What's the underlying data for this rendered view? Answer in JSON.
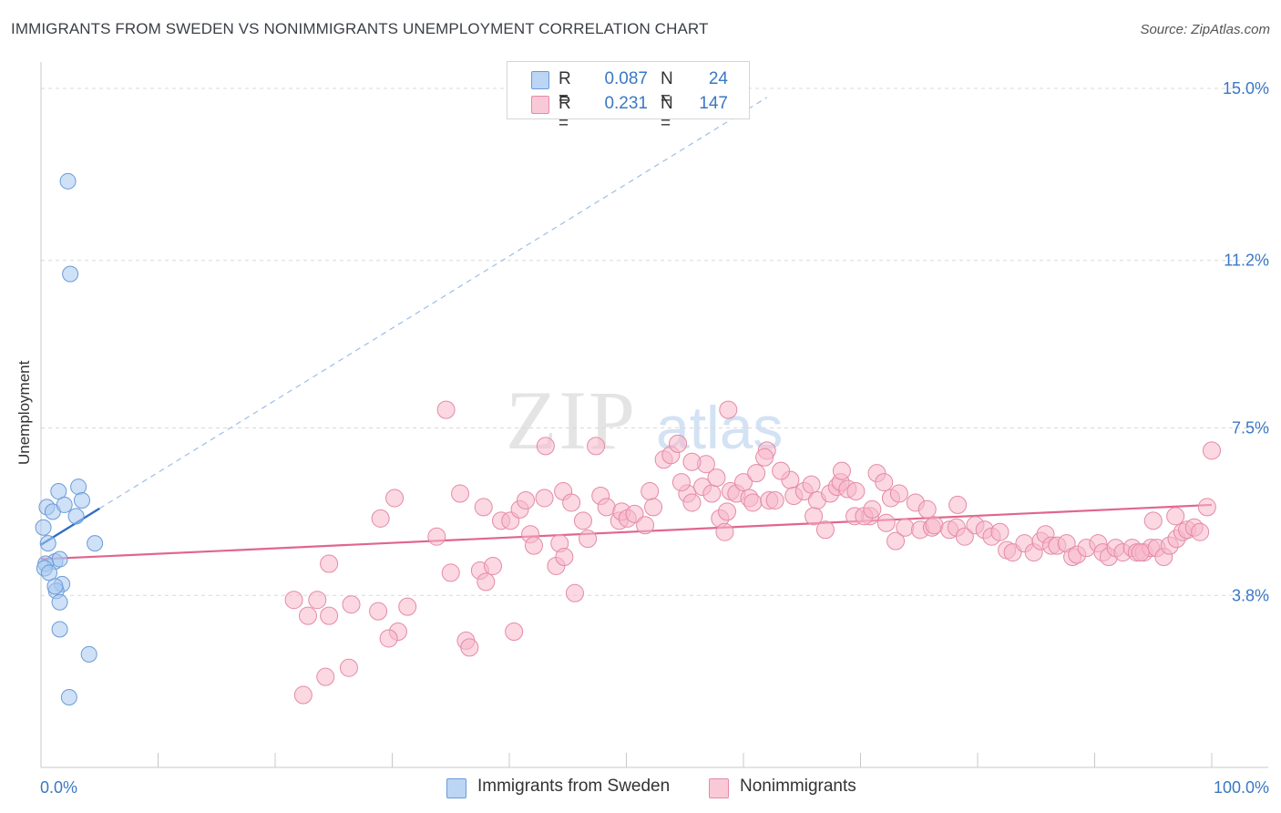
{
  "chart_data": {
    "type": "scatter",
    "title": "IMMIGRANTS FROM SWEDEN VS NONIMMIGRANTS UNEMPLOYMENT CORRELATION CHART",
    "source": "Source: ZipAtlas.com",
    "ylabel": "Unemployment",
    "xlim": [
      0,
      100
    ],
    "ylim": [
      0,
      15.0
    ],
    "x_tick_labels": [
      "0.0%",
      "100.0%"
    ],
    "y_ticks": [
      {
        "value": 3.8,
        "label": "3.8%"
      },
      {
        "value": 7.5,
        "label": "7.5%"
      },
      {
        "value": 11.2,
        "label": "11.2%"
      },
      {
        "value": 15.0,
        "label": "15.0%"
      }
    ],
    "legend": [
      {
        "series": "Immigrants from Sweden",
        "r_label": "R =",
        "r_value": "0.087",
        "n_label": "N =",
        "n_value": "24",
        "color": "#a8c8f0",
        "edge": "#5b8fd6"
      },
      {
        "series": "Nonimmigrants",
        "r_label": "R =",
        "r_value": "0.231",
        "n_label": "N =",
        "n_value": "147",
        "color": "#f7b8cb",
        "edge": "#e07a9c"
      }
    ],
    "series": [
      {
        "name": "Immigrants from Sweden",
        "color": "#a8c8f0",
        "edge": "#6a9ad8",
        "trend": {
          "x0": 0,
          "y0": 4.92,
          "x1": 5,
          "y1": 5.72,
          "ext_x1": 62,
          "ext_y1": 14.8,
          "color": "#2f6fc4"
        },
        "points": [
          [
            0.2,
            5.3
          ],
          [
            0.5,
            5.75
          ],
          [
            1.0,
            5.65
          ],
          [
            1.5,
            6.1
          ],
          [
            3.2,
            6.2
          ],
          [
            3.5,
            5.9
          ],
          [
            2.0,
            5.8
          ],
          [
            3.0,
            5.55
          ],
          [
            0.6,
            4.95
          ],
          [
            1.2,
            4.55
          ],
          [
            1.6,
            4.6
          ],
          [
            0.4,
            4.5
          ],
          [
            0.3,
            4.4
          ],
          [
            0.7,
            4.3
          ],
          [
            1.8,
            4.05
          ],
          [
            1.3,
            3.9
          ],
          [
            1.6,
            3.65
          ],
          [
            1.6,
            3.05
          ],
          [
            2.3,
            12.95
          ],
          [
            2.5,
            10.9
          ],
          [
            4.6,
            4.95
          ],
          [
            4.1,
            2.5
          ],
          [
            2.4,
            1.55
          ],
          [
            1.2,
            4.0
          ]
        ]
      },
      {
        "name": "Nonimmigrants",
        "color": "#f7b8cb",
        "edge": "#e48aa8",
        "trend": {
          "x0": 0,
          "y0": 4.6,
          "x1": 100,
          "y1": 5.8,
          "color": "#e0668f"
        },
        "points": [
          [
            21.6,
            3.7
          ],
          [
            22.8,
            3.35
          ],
          [
            23.6,
            3.7
          ],
          [
            24.6,
            3.35
          ],
          [
            26.5,
            3.6
          ],
          [
            28.8,
            3.45
          ],
          [
            30.5,
            3.0
          ],
          [
            31.3,
            3.55
          ],
          [
            29.7,
            2.85
          ],
          [
            26.3,
            2.2
          ],
          [
            24.3,
            2.0
          ],
          [
            24.6,
            4.5
          ],
          [
            22.4,
            1.6
          ],
          [
            29.0,
            5.5
          ],
          [
            30.2,
            5.95
          ],
          [
            33.8,
            5.1
          ],
          [
            35.0,
            4.3
          ],
          [
            35.8,
            6.05
          ],
          [
            36.3,
            2.8
          ],
          [
            36.6,
            2.65
          ],
          [
            37.5,
            4.35
          ],
          [
            37.8,
            5.75
          ],
          [
            38.0,
            4.1
          ],
          [
            38.6,
            4.45
          ],
          [
            39.3,
            5.45
          ],
          [
            40.1,
            5.45
          ],
          [
            40.4,
            3.0
          ],
          [
            40.9,
            5.7
          ],
          [
            41.4,
            5.9
          ],
          [
            41.8,
            5.15
          ],
          [
            42.1,
            4.9
          ],
          [
            43.0,
            5.95
          ],
          [
            44.0,
            4.45
          ],
          [
            44.3,
            4.95
          ],
          [
            44.6,
            6.1
          ],
          [
            45.3,
            5.85
          ],
          [
            44.7,
            4.65
          ],
          [
            45.6,
            3.85
          ],
          [
            46.3,
            5.45
          ],
          [
            46.7,
            5.05
          ],
          [
            47.8,
            6.0
          ],
          [
            48.3,
            5.75
          ],
          [
            49.4,
            5.45
          ],
          [
            49.6,
            5.65
          ],
          [
            50.1,
            5.5
          ],
          [
            50.7,
            5.6
          ],
          [
            51.6,
            5.35
          ],
          [
            52.0,
            6.1
          ],
          [
            52.3,
            5.75
          ],
          [
            53.2,
            6.8
          ],
          [
            53.8,
            6.9
          ],
          [
            55.2,
            6.05
          ],
          [
            54.7,
            6.3
          ],
          [
            55.6,
            5.85
          ],
          [
            56.5,
            6.2
          ],
          [
            57.3,
            6.05
          ],
          [
            58.0,
            5.5
          ],
          [
            58.4,
            5.2
          ],
          [
            58.9,
            6.1
          ],
          [
            59.4,
            6.05
          ],
          [
            58.6,
            5.65
          ],
          [
            60.0,
            6.3
          ],
          [
            60.5,
            5.95
          ],
          [
            60.8,
            5.85
          ],
          [
            62.0,
            7.0
          ],
          [
            61.8,
            6.85
          ],
          [
            62.2,
            5.9
          ],
          [
            62.7,
            5.9
          ],
          [
            64.0,
            6.35
          ],
          [
            64.3,
            6.0
          ],
          [
            65.2,
            6.1
          ],
          [
            65.8,
            6.25
          ],
          [
            66.3,
            5.9
          ],
          [
            67.0,
            5.25
          ],
          [
            67.4,
            6.05
          ],
          [
            68.0,
            6.2
          ],
          [
            68.3,
            6.3
          ],
          [
            68.9,
            6.15
          ],
          [
            69.6,
            6.1
          ],
          [
            70.8,
            5.55
          ],
          [
            71.4,
            6.5
          ],
          [
            72.2,
            5.4
          ],
          [
            72.6,
            5.95
          ],
          [
            73.0,
            5.0
          ],
          [
            73.8,
            5.3
          ],
          [
            74.7,
            5.85
          ],
          [
            75.1,
            5.25
          ],
          [
            75.7,
            5.7
          ],
          [
            76.1,
            5.3
          ],
          [
            76.3,
            5.35
          ],
          [
            77.6,
            5.25
          ],
          [
            78.2,
            5.3
          ],
          [
            78.3,
            5.8
          ],
          [
            78.9,
            5.1
          ],
          [
            79.8,
            5.35
          ],
          [
            80.6,
            5.25
          ],
          [
            81.2,
            5.1
          ],
          [
            81.9,
            5.2
          ],
          [
            82.5,
            4.8
          ],
          [
            83.0,
            4.75
          ],
          [
            84.0,
            4.95
          ],
          [
            84.8,
            4.75
          ],
          [
            85.4,
            5.0
          ],
          [
            85.8,
            5.15
          ],
          [
            86.3,
            4.9
          ],
          [
            86.8,
            4.9
          ],
          [
            87.6,
            4.95
          ],
          [
            88.1,
            4.65
          ],
          [
            88.5,
            4.7
          ],
          [
            89.3,
            4.85
          ],
          [
            90.3,
            4.95
          ],
          [
            90.7,
            4.75
          ],
          [
            91.2,
            4.65
          ],
          [
            91.8,
            4.85
          ],
          [
            92.4,
            4.75
          ],
          [
            93.2,
            4.85
          ],
          [
            93.6,
            4.75
          ],
          [
            94.2,
            4.75
          ],
          [
            94.8,
            4.85
          ],
          [
            95.3,
            4.85
          ],
          [
            95.9,
            4.65
          ],
          [
            96.4,
            4.9
          ],
          [
            97.0,
            5.05
          ],
          [
            97.5,
            5.2
          ],
          [
            97.9,
            5.25
          ],
          [
            98.5,
            5.3
          ],
          [
            99.0,
            5.2
          ],
          [
            99.6,
            5.75
          ],
          [
            100.0,
            7.0
          ],
          [
            93.9,
            4.75
          ],
          [
            95.0,
            5.45
          ],
          [
            96.9,
            5.55
          ],
          [
            61.1,
            6.5
          ],
          [
            34.6,
            7.9
          ],
          [
            43.1,
            7.1
          ],
          [
            47.4,
            7.1
          ],
          [
            54.4,
            7.15
          ],
          [
            57.7,
            6.4
          ],
          [
            56.8,
            6.7
          ],
          [
            55.6,
            6.75
          ],
          [
            58.7,
            7.9
          ],
          [
            63.2,
            6.55
          ],
          [
            68.4,
            6.55
          ],
          [
            66.0,
            5.55
          ],
          [
            69.5,
            5.55
          ],
          [
            70.3,
            5.55
          ],
          [
            71.0,
            5.7
          ],
          [
            72.0,
            6.3
          ],
          [
            73.3,
            6.05
          ]
        ]
      }
    ],
    "watermark": "ZIPatlas"
  }
}
